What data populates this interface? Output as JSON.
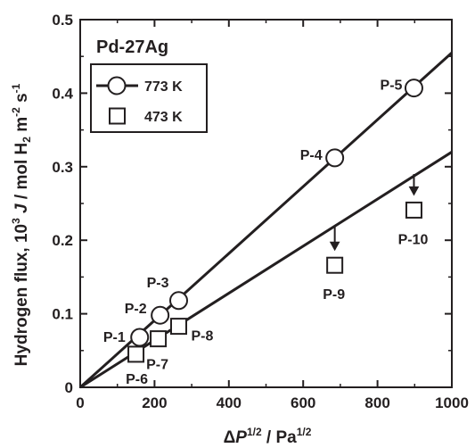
{
  "colors": {
    "ink": "#231f20",
    "marker_fill": "#ffffff",
    "background": "#ffffff"
  },
  "chart_data": {
    "type": "scatter",
    "title": "Pd-27Ag",
    "xlabel": {
      "prefix": "Δ",
      "var": "P",
      "sup1": "1/2",
      "mid": " / Pa",
      "sup2": "1/2"
    },
    "ylabel": {
      "prefix": "Hydrogen flux, 10",
      "sup": "3",
      "var": " J",
      "unit": " / mol H",
      "sub": "2",
      "unit2": " m",
      "sup2": "-2",
      "unit3": " s",
      "sup3": "-1"
    },
    "xlim": [
      0,
      1000
    ],
    "ylim": [
      0,
      0.5
    ],
    "x_ticks": [
      "0",
      "200",
      "400",
      "600",
      "800",
      "1000"
    ],
    "y_ticks": [
      "0",
      "0.1",
      "0.2",
      "0.3",
      "0.4",
      "0.5"
    ],
    "legend": {
      "placement": "top-left",
      "entries": [
        "773 K",
        "473 K"
      ]
    },
    "series": [
      {
        "name": "773 K",
        "marker": "circle",
        "fit_slope": 0.000455,
        "points": [
          {
            "label": "P-1",
            "x": 160,
            "y": 0.068
          },
          {
            "label": "P-2",
            "x": 215,
            "y": 0.098
          },
          {
            "label": "P-3",
            "x": 265,
            "y": 0.118
          },
          {
            "label": "P-4",
            "x": 685,
            "y": 0.312
          },
          {
            "label": "P-5",
            "x": 898,
            "y": 0.407
          }
        ]
      },
      {
        "name": "473 K",
        "marker": "square",
        "fit_slope": 0.00032,
        "points": [
          {
            "label": "P-6",
            "x": 150,
            "y": 0.045
          },
          {
            "label": "P-7",
            "x": 210,
            "y": 0.066
          },
          {
            "label": "P-8",
            "x": 265,
            "y": 0.083
          },
          {
            "label": "P-9",
            "x": 685,
            "y": 0.166,
            "arrow_from": 0.22
          },
          {
            "label": "P-10",
            "x": 898,
            "y": 0.241,
            "arrow_from": 0.29
          }
        ]
      }
    ],
    "grid": false
  }
}
